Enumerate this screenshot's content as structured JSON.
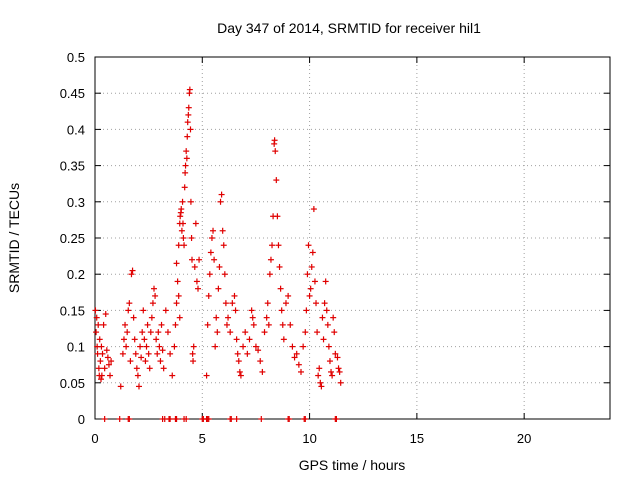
{
  "chart_data": {
    "type": "scatter",
    "title": "Day 347 of 2014, SRMTID for receiver hil1",
    "xlabel": "GPS time / hours",
    "ylabel": "SRMTID / TECUs",
    "xlim": [
      0,
      24
    ],
    "ylim": [
      0,
      0.5
    ],
    "xticks": [
      0,
      5,
      10,
      15,
      20
    ],
    "xtick_labels": [
      "0",
      "5",
      "10",
      "15",
      "20"
    ],
    "yticks": [
      0,
      0.05,
      0.1,
      0.15,
      0.2,
      0.25,
      0.3,
      0.35,
      0.4,
      0.45,
      0.5
    ],
    "ytick_labels": [
      "0",
      "0.05",
      "0.1",
      "0.15",
      "0.2",
      "0.25",
      "0.3",
      "0.35",
      "0.4",
      "0.45",
      "0.5"
    ],
    "grid": true,
    "marker": "+",
    "colors": {
      "marker": "#e00000",
      "axes": "#000000",
      "grid": "#a0a0a0"
    },
    "series": [
      {
        "name": "SRMTID",
        "points": [
          [
            0.02,
            0.15
          ],
          [
            0.05,
            0.12
          ],
          [
            0.08,
            0.14
          ],
          [
            0.1,
            0.1
          ],
          [
            0.12,
            0.09
          ],
          [
            0.15,
            0.13
          ],
          [
            0.18,
            0.07
          ],
          [
            0.2,
            0.06
          ],
          [
            0.22,
            0.11
          ],
          [
            0.25,
            0.08
          ],
          [
            0.28,
            0.055
          ],
          [
            0.3,
            0.1
          ],
          [
            0.32,
            0.06
          ],
          [
            0.35,
            0.09
          ],
          [
            0.4,
            0.13
          ],
          [
            0.45,
            0.07
          ],
          [
            0.5,
            0.145
          ],
          [
            0.55,
            0.095
          ],
          [
            0.6,
            0.085
          ],
          [
            0.65,
            0.075
          ],
          [
            0.7,
            0.06
          ],
          [
            0.75,
            0.08
          ],
          [
            1.2,
            0.045
          ],
          [
            1.3,
            0.09
          ],
          [
            1.35,
            0.11
          ],
          [
            1.4,
            0.13
          ],
          [
            1.45,
            0.1
          ],
          [
            1.5,
            0.12
          ],
          [
            1.55,
            0.15
          ],
          [
            1.6,
            0.16
          ],
          [
            1.65,
            0.08
          ],
          [
            1.7,
            0.2
          ],
          [
            1.75,
            0.205
          ],
          [
            1.8,
            0.14
          ],
          [
            1.85,
            0.11
          ],
          [
            1.9,
            0.09
          ],
          [
            1.95,
            0.07
          ],
          [
            2.0,
            0.06
          ],
          [
            2.05,
            0.045
          ],
          [
            2.1,
            0.1
          ],
          [
            2.15,
            0.085
          ],
          [
            2.2,
            0.12
          ],
          [
            2.25,
            0.15
          ],
          [
            2.3,
            0.11
          ],
          [
            2.35,
            0.08
          ],
          [
            2.4,
            0.1
          ],
          [
            2.45,
            0.13
          ],
          [
            2.5,
            0.09
          ],
          [
            2.55,
            0.07
          ],
          [
            2.6,
            0.12
          ],
          [
            2.65,
            0.14
          ],
          [
            2.7,
            0.16
          ],
          [
            2.75,
            0.18
          ],
          [
            2.8,
            0.17
          ],
          [
            2.85,
            0.11
          ],
          [
            2.9,
            0.09
          ],
          [
            2.95,
            0.12
          ],
          [
            3.0,
            0.1
          ],
          [
            3.05,
            0.08
          ],
          [
            3.1,
            0.13
          ],
          [
            3.15,
            0.095
          ],
          [
            3.2,
            0.07
          ],
          [
            3.3,
            0.15
          ],
          [
            3.4,
            0.12
          ],
          [
            3.5,
            0.09
          ],
          [
            3.6,
            0.06
          ],
          [
            3.7,
            0.1
          ],
          [
            3.75,
            0.13
          ],
          [
            3.8,
            0.16
          ],
          [
            3.85,
            0.19
          ],
          [
            3.9,
            0.17
          ],
          [
            3.95,
            0.14
          ],
          [
            3.8,
            0.215
          ],
          [
            3.9,
            0.24
          ],
          [
            3.95,
            0.27
          ],
          [
            3.97,
            0.28
          ],
          [
            4.0,
            0.285
          ],
          [
            4.02,
            0.29
          ],
          [
            4.05,
            0.26
          ],
          [
            4.08,
            0.3
          ],
          [
            4.1,
            0.27
          ],
          [
            4.12,
            0.25
          ],
          [
            4.15,
            0.24
          ],
          [
            4.18,
            0.32
          ],
          [
            4.2,
            0.34
          ],
          [
            4.22,
            0.35
          ],
          [
            4.25,
            0.37
          ],
          [
            4.28,
            0.36
          ],
          [
            4.3,
            0.39
          ],
          [
            4.32,
            0.41
          ],
          [
            4.35,
            0.42
          ],
          [
            4.37,
            0.43
          ],
          [
            4.4,
            0.45
          ],
          [
            4.42,
            0.455
          ],
          [
            4.45,
            0.4
          ],
          [
            4.47,
            0.3
          ],
          [
            4.5,
            0.25
          ],
          [
            4.52,
            0.22
          ],
          [
            4.55,
            0.09
          ],
          [
            4.57,
            0.08
          ],
          [
            4.6,
            0.1
          ],
          [
            4.65,
            0.21
          ],
          [
            4.7,
            0.27
          ],
          [
            4.75,
            0.19
          ],
          [
            4.8,
            0.18
          ],
          [
            4.85,
            0.22
          ],
          [
            5.2,
            0.06
          ],
          [
            5.25,
            0.13
          ],
          [
            5.3,
            0.17
          ],
          [
            5.35,
            0.2
          ],
          [
            5.4,
            0.23
          ],
          [
            5.45,
            0.25
          ],
          [
            5.5,
            0.26
          ],
          [
            5.55,
            0.22
          ],
          [
            5.6,
            0.1
          ],
          [
            5.65,
            0.14
          ],
          [
            5.7,
            0.12
          ],
          [
            5.75,
            0.18
          ],
          [
            5.8,
            0.21
          ],
          [
            5.85,
            0.3
          ],
          [
            5.9,
            0.31
          ],
          [
            5.95,
            0.26
          ],
          [
            6.0,
            0.24
          ],
          [
            6.05,
            0.2
          ],
          [
            6.1,
            0.16
          ],
          [
            6.15,
            0.13
          ],
          [
            6.2,
            0.14
          ],
          [
            6.3,
            0.12
          ],
          [
            6.4,
            0.16
          ],
          [
            6.5,
            0.17
          ],
          [
            6.55,
            0.15
          ],
          [
            6.6,
            0.11
          ],
          [
            6.65,
            0.09
          ],
          [
            6.7,
            0.08
          ],
          [
            6.75,
            0.065
          ],
          [
            6.8,
            0.06
          ],
          [
            6.9,
            0.1
          ],
          [
            7.0,
            0.12
          ],
          [
            7.1,
            0.09
          ],
          [
            7.2,
            0.11
          ],
          [
            7.3,
            0.15
          ],
          [
            7.35,
            0.14
          ],
          [
            7.4,
            0.13
          ],
          [
            7.5,
            0.1
          ],
          [
            7.6,
            0.095
          ],
          [
            7.7,
            0.08
          ],
          [
            7.8,
            0.065
          ],
          [
            7.9,
            0.12
          ],
          [
            8.0,
            0.14
          ],
          [
            8.05,
            0.16
          ],
          [
            8.1,
            0.13
          ],
          [
            8.15,
            0.2
          ],
          [
            8.2,
            0.22
          ],
          [
            8.25,
            0.24
          ],
          [
            8.3,
            0.28
          ],
          [
            8.35,
            0.38
          ],
          [
            8.37,
            0.385
          ],
          [
            8.4,
            0.37
          ],
          [
            8.45,
            0.33
          ],
          [
            8.5,
            0.28
          ],
          [
            8.55,
            0.24
          ],
          [
            8.6,
            0.21
          ],
          [
            8.65,
            0.18
          ],
          [
            8.7,
            0.15
          ],
          [
            8.75,
            0.13
          ],
          [
            8.8,
            0.11
          ],
          [
            8.9,
            0.16
          ],
          [
            9.0,
            0.17
          ],
          [
            9.1,
            0.13
          ],
          [
            9.2,
            0.1
          ],
          [
            9.3,
            0.085
          ],
          [
            9.4,
            0.09
          ],
          [
            9.5,
            0.075
          ],
          [
            9.6,
            0.065
          ],
          [
            9.7,
            0.1
          ],
          [
            9.8,
            0.12
          ],
          [
            9.85,
            0.15
          ],
          [
            9.9,
            0.2
          ],
          [
            9.95,
            0.24
          ],
          [
            10.0,
            0.17
          ],
          [
            10.05,
            0.18
          ],
          [
            10.1,
            0.21
          ],
          [
            10.15,
            0.23
          ],
          [
            10.2,
            0.29
          ],
          [
            10.25,
            0.19
          ],
          [
            10.3,
            0.16
          ],
          [
            10.35,
            0.12
          ],
          [
            10.4,
            0.06
          ],
          [
            10.45,
            0.07
          ],
          [
            10.5,
            0.05
          ],
          [
            10.55,
            0.045
          ],
          [
            10.6,
            0.14
          ],
          [
            10.65,
            0.11
          ],
          [
            10.7,
            0.16
          ],
          [
            10.75,
            0.19
          ],
          [
            10.8,
            0.15
          ],
          [
            10.85,
            0.13
          ],
          [
            10.9,
            0.1
          ],
          [
            10.95,
            0.08
          ],
          [
            11.0,
            0.065
          ],
          [
            11.05,
            0.06
          ],
          [
            11.1,
            0.14
          ],
          [
            11.15,
            0.12
          ],
          [
            11.2,
            0.09
          ],
          [
            11.3,
            0.085
          ],
          [
            11.35,
            0.07
          ],
          [
            11.4,
            0.065
          ],
          [
            11.45,
            0.05
          ]
        ]
      }
    ],
    "zero_points_x": [
      0.45,
      1.15,
      1.55,
      1.6,
      3.15,
      3.25,
      3.45,
      3.5,
      3.75,
      3.8,
      4.15,
      4.25,
      5.0,
      5.05,
      5.2,
      5.25,
      5.3,
      6.3,
      6.35,
      6.6,
      7.75,
      9.0,
      9.05,
      9.75,
      9.8,
      11.2,
      11.25
    ]
  }
}
